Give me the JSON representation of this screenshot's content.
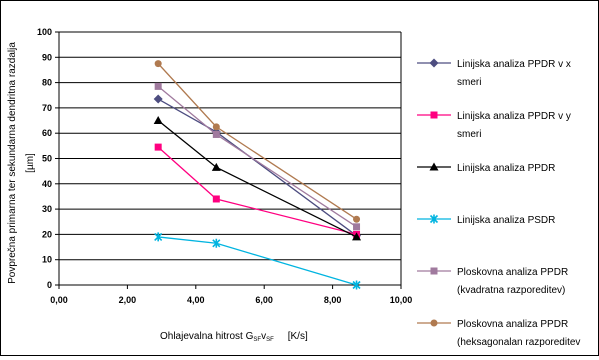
{
  "chart_data": {
    "type": "line",
    "title": "",
    "ylabel_line1": "Povprečna primarna ter sekundarna dendritna razdalja",
    "ylabel_line2": "[µm]",
    "xlabel_main": "Ohlajevalna hitrost G",
    "xlabel_sub1": "SF",
    "xlabel_mid": "v",
    "xlabel_sub2": "SF",
    "xlabel_unit": "[K/s]",
    "xlim": [
      0,
      10
    ],
    "ylim": [
      0,
      100
    ],
    "x_ticks": [
      "0,00",
      "2,00",
      "4,00",
      "6,00",
      "8,00",
      "10,00"
    ],
    "y_ticks": [
      "0",
      "10",
      "20",
      "30",
      "40",
      "50",
      "60",
      "70",
      "80",
      "90",
      "100"
    ],
    "grid": "horizontal",
    "legend_position": "right",
    "series": [
      {
        "name_lines": [
          "Linijska analiza PPDR v x",
          "smeri"
        ],
        "color": "#4d4d80",
        "marker": "diamond",
        "x": [
          2.9,
          4.6,
          8.7
        ],
        "y": [
          73.5,
          60.5,
          19.5
        ]
      },
      {
        "name_lines": [
          "Linijska analiza PPDR v y",
          "smeri"
        ],
        "color": "#ff0080",
        "marker": "square",
        "x": [
          2.9,
          4.6,
          8.7
        ],
        "y": [
          54.5,
          34,
          20
        ]
      },
      {
        "name_lines": [
          "Linijska analiza PPDR"
        ],
        "color": "#000000",
        "marker": "triangle",
        "x": [
          2.9,
          4.6,
          8.7
        ],
        "y": [
          65,
          46.5,
          19
        ]
      },
      {
        "name_lines": [
          "Linijska analiza PSDR"
        ],
        "color": "#00b4e0",
        "marker": "star",
        "x": [
          2.9,
          4.6,
          8.7
        ],
        "y": [
          19,
          16.5,
          0
        ]
      },
      {
        "name_lines": [
          "Ploskovna analiza PPDR",
          "(kvadratna razporeditev)"
        ],
        "color": "#a07a9e",
        "marker": "square",
        "x": [
          2.9,
          4.6,
          8.7
        ],
        "y": [
          78.5,
          59.5,
          23
        ]
      },
      {
        "name_lines": [
          "Ploskovna analiza PPDR",
          "(heksagonalan razporeditev"
        ],
        "color": "#b07a50",
        "marker": "circle",
        "x": [
          2.9,
          4.6,
          8.7
        ],
        "y": [
          87.5,
          62.5,
          26
        ]
      }
    ]
  }
}
